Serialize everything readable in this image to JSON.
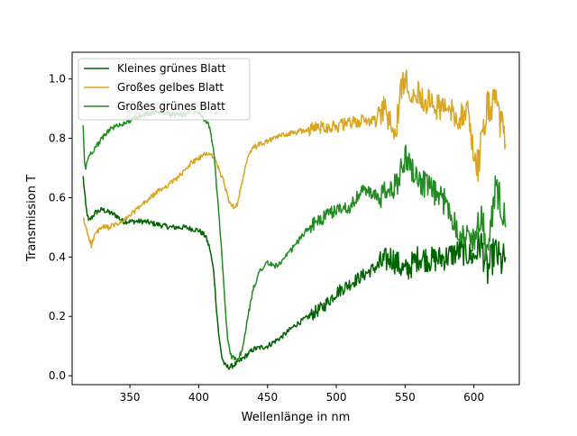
{
  "chart_data": {
    "type": "line",
    "xlabel": "Wellenlänge in nm",
    "ylabel": "Transmission T",
    "xlim": [
      308,
      633
    ],
    "ylim": [
      -0.03,
      1.09
    ],
    "xticks": [
      350,
      400,
      450,
      500,
      550,
      600
    ],
    "yticks": [
      0.0,
      0.2,
      0.4,
      0.6,
      0.8,
      1.0
    ],
    "xtick_labels": [
      "350",
      "400",
      "450",
      "500",
      "550",
      "600"
    ],
    "ytick_labels": [
      "0.0",
      "0.2",
      "0.4",
      "0.6",
      "0.8",
      "1.0"
    ],
    "grid": false,
    "legend_position": "upper-left",
    "series": [
      {
        "name": "Kleines grünes Blatt",
        "color": "#006400",
        "x": [
          316,
          318,
          320,
          325,
          330,
          335,
          340,
          345,
          350,
          360,
          370,
          380,
          390,
          400,
          405,
          408,
          411,
          413,
          415,
          417,
          419,
          421,
          423,
          425,
          427,
          430,
          435,
          440,
          450,
          460,
          470,
          480,
          490,
          500,
          510,
          520,
          530,
          540,
          550,
          560,
          570,
          580,
          590,
          600,
          605,
          610,
          615,
          620,
          623
        ],
        "y": [
          0.67,
          0.57,
          0.52,
          0.55,
          0.56,
          0.55,
          0.54,
          0.52,
          0.52,
          0.52,
          0.51,
          0.5,
          0.5,
          0.49,
          0.47,
          0.43,
          0.35,
          0.22,
          0.12,
          0.06,
          0.035,
          0.03,
          0.03,
          0.035,
          0.04,
          0.05,
          0.07,
          0.09,
          0.1,
          0.13,
          0.17,
          0.2,
          0.23,
          0.28,
          0.31,
          0.34,
          0.37,
          0.4,
          0.35,
          0.4,
          0.39,
          0.4,
          0.42,
          0.4,
          0.45,
          0.35,
          0.42,
          0.38,
          0.4
        ]
      },
      {
        "name": "Großes gelbes Blatt",
        "color": "#DAA520",
        "x": [
          316,
          318,
          320,
          322,
          325,
          330,
          335,
          340,
          345,
          350,
          360,
          370,
          380,
          390,
          395,
          400,
          405,
          410,
          413,
          416,
          419,
          422,
          425,
          428,
          432,
          436,
          440,
          450,
          460,
          470,
          480,
          490,
          500,
          510,
          520,
          530,
          535,
          540,
          543,
          546,
          550,
          555,
          560,
          570,
          580,
          590,
          595,
          600,
          603,
          606,
          610,
          615,
          620,
          623
        ],
        "y": [
          0.53,
          0.5,
          0.47,
          0.44,
          0.48,
          0.5,
          0.5,
          0.51,
          0.52,
          0.54,
          0.58,
          0.62,
          0.65,
          0.69,
          0.72,
          0.73,
          0.75,
          0.74,
          0.72,
          0.68,
          0.64,
          0.59,
          0.57,
          0.58,
          0.66,
          0.74,
          0.77,
          0.79,
          0.81,
          0.82,
          0.83,
          0.84,
          0.84,
          0.85,
          0.86,
          0.86,
          0.9,
          0.84,
          0.8,
          0.94,
          1.0,
          0.96,
          0.95,
          0.91,
          0.9,
          0.87,
          0.9,
          0.75,
          0.7,
          0.82,
          0.9,
          0.92,
          0.85,
          0.78
        ]
      },
      {
        "name": "Großes grünes Blatt",
        "color": "#228B22",
        "x": [
          316,
          317,
          318,
          320,
          325,
          330,
          335,
          340,
          345,
          350,
          360,
          370,
          380,
          390,
          395,
          400,
          405,
          408,
          411,
          414,
          417,
          419,
          421,
          423,
          426,
          429,
          432,
          435,
          440,
          445,
          450,
          455,
          460,
          465,
          470,
          480,
          490,
          500,
          510,
          520,
          530,
          540,
          545,
          550,
          555,
          560,
          570,
          580,
          590,
          600,
          605,
          610,
          615,
          620,
          623
        ],
        "y": [
          0.84,
          0.72,
          0.7,
          0.74,
          0.77,
          0.8,
          0.83,
          0.84,
          0.85,
          0.86,
          0.88,
          0.89,
          0.88,
          0.88,
          0.9,
          0.89,
          0.86,
          0.84,
          0.75,
          0.58,
          0.4,
          0.25,
          0.12,
          0.07,
          0.06,
          0.06,
          0.09,
          0.18,
          0.3,
          0.36,
          0.38,
          0.37,
          0.38,
          0.41,
          0.44,
          0.5,
          0.53,
          0.56,
          0.57,
          0.63,
          0.6,
          0.62,
          0.66,
          0.74,
          0.7,
          0.66,
          0.62,
          0.58,
          0.48,
          0.46,
          0.55,
          0.4,
          0.62,
          0.58,
          0.5
        ]
      }
    ]
  }
}
